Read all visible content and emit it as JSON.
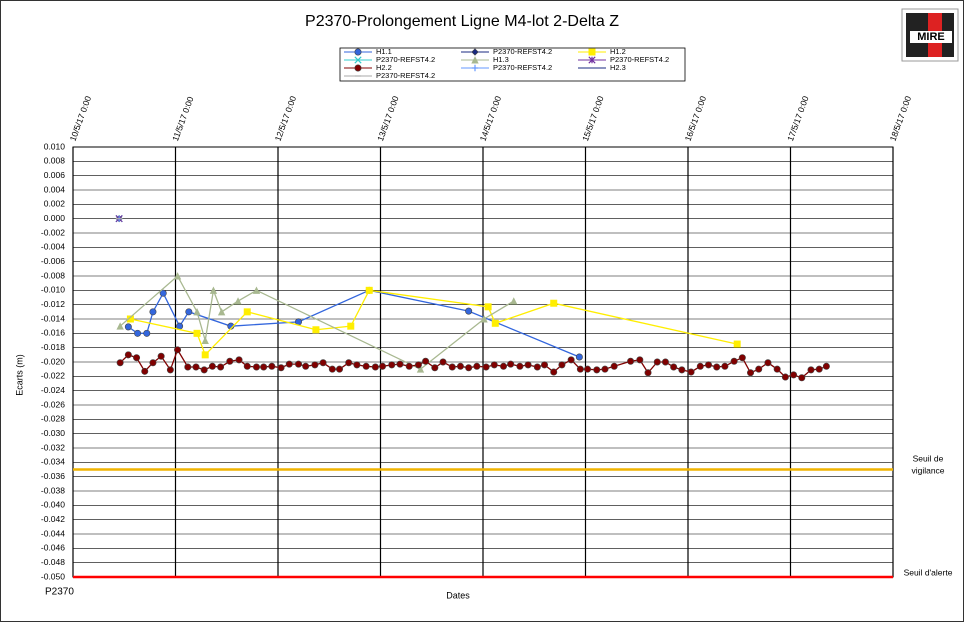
{
  "chart_data": {
    "type": "scatter-line",
    "title": "P2370-Prolongement Ligne M4-lot 2-Delta Z",
    "y_label": "Ecarts (m)",
    "x_label": "Dates",
    "footer": "P2370",
    "logo": "MIRE",
    "xlim": [
      10,
      18
    ],
    "xticks": [
      {
        "value": 10,
        "label": "10/5/17 0:00"
      },
      {
        "value": 11,
        "label": "11/5/17 0:00"
      },
      {
        "value": 12,
        "label": "12/5/17 0:00"
      },
      {
        "value": 13,
        "label": "13/5/17 0:00"
      },
      {
        "value": 14,
        "label": "14/5/17 0:00"
      },
      {
        "value": 15,
        "label": "15/5/17 0:00"
      },
      {
        "value": 16,
        "label": "16/5/17 0:00"
      },
      {
        "value": 17,
        "label": "17/5/17 0:00"
      },
      {
        "value": 18,
        "label": "18/5/17 0:00"
      }
    ],
    "ylim": [
      -0.05,
      0.01
    ],
    "yticks": [
      {
        "value": 0.01,
        "label": "0.010"
      },
      {
        "value": 0.008,
        "label": "0.008"
      },
      {
        "value": 0.006,
        "label": "0.006"
      },
      {
        "value": 0.004,
        "label": "0.004"
      },
      {
        "value": 0.002,
        "label": "0.002"
      },
      {
        "value": 0,
        "label": "0.000"
      },
      {
        "value": -0.002,
        "label": "-0.002"
      },
      {
        "value": -0.004,
        "label": "-0.004"
      },
      {
        "value": -0.006,
        "label": "-0.006"
      },
      {
        "value": -0.008,
        "label": "-0.008"
      },
      {
        "value": -0.01,
        "label": "-0.010"
      },
      {
        "value": -0.012,
        "label": "-0.012"
      },
      {
        "value": -0.014,
        "label": "-0.014"
      },
      {
        "value": -0.016,
        "label": "-0.016"
      },
      {
        "value": -0.018,
        "label": "-0.018"
      },
      {
        "value": -0.02,
        "label": "-0.020"
      },
      {
        "value": -0.022,
        "label": "-0.022"
      },
      {
        "value": -0.024,
        "label": "-0.024"
      },
      {
        "value": -0.026,
        "label": "-0.026"
      },
      {
        "value": -0.028,
        "label": "-0.028"
      },
      {
        "value": -0.03,
        "label": "-0.030"
      },
      {
        "value": -0.032,
        "label": "-0.032"
      },
      {
        "value": -0.034,
        "label": "-0.034"
      },
      {
        "value": -0.036,
        "label": "-0.036"
      },
      {
        "value": -0.038,
        "label": "-0.038"
      },
      {
        "value": -0.04,
        "label": "-0.040"
      },
      {
        "value": -0.042,
        "label": "-0.042"
      },
      {
        "value": -0.044,
        "label": "-0.044"
      },
      {
        "value": -0.046,
        "label": "-0.046"
      },
      {
        "value": -0.048,
        "label": "-0.048"
      },
      {
        "value": -0.05,
        "label": "-0.050"
      }
    ],
    "grid": true,
    "thresholds": [
      {
        "name": "Seuil de vigilance",
        "value": -0.035,
        "color": "#f0b400"
      },
      {
        "name": "Seuil d'alerte",
        "value": -0.05,
        "color": "#ff0000"
      }
    ],
    "series": [
      {
        "name": "H1.1",
        "color": "#3366dd",
        "marker": "circle",
        "x": [
          10.54,
          10.63,
          10.72,
          10.78,
          10.88,
          11.04,
          11.13,
          11.54,
          12.2,
          12.89,
          13.86,
          14.94
        ],
        "values": [
          -0.0151,
          -0.016,
          -0.016,
          -0.013,
          -0.0104,
          -0.015,
          -0.013,
          -0.015,
          -0.0144,
          -0.01,
          -0.0129,
          -0.0193
        ]
      },
      {
        "name": "P2370-REFST4.2",
        "color": "#1a2a80",
        "marker": "diamond",
        "x": [
          10.45
        ],
        "values": [
          0
        ]
      },
      {
        "name": "H1.2",
        "color": "#ffee00",
        "marker": "square",
        "x": [
          10.56,
          11.21,
          11.29,
          11.7,
          12.37,
          12.71,
          12.89,
          14.05,
          14.12,
          14.69,
          16.48
        ],
        "values": [
          -0.014,
          -0.016,
          -0.019,
          -0.013,
          -0.0155,
          -0.015,
          -0.01,
          -0.0123,
          -0.0146,
          -0.0118,
          -0.0175
        ]
      },
      {
        "name": "P2370-REFST4.2",
        "color": "#33cccc",
        "marker": "x",
        "x": [
          10.45
        ],
        "values": [
          0
        ]
      },
      {
        "name": "H1.3",
        "color": "#a8b890",
        "marker": "triangle",
        "x": [
          10.46,
          11.02,
          11.21,
          11.29,
          11.37,
          11.45,
          11.61,
          11.79,
          13.39,
          14.01,
          14.3
        ],
        "values": [
          -0.015,
          -0.008,
          -0.013,
          -0.017,
          -0.01,
          -0.013,
          -0.0115,
          -0.01,
          -0.021,
          -0.014,
          -0.0115
        ]
      },
      {
        "name": "P2370-REFST4.2",
        "color": "#7030a0",
        "marker": "star",
        "x": [
          10.45
        ],
        "values": [
          0
        ]
      },
      {
        "name": "H2.2",
        "color": "#800000",
        "marker": "circle",
        "x": [
          10.46,
          10.54,
          10.62,
          10.7,
          10.78,
          10.86,
          10.95,
          11.02,
          11.12,
          11.2,
          11.28,
          11.36,
          11.44,
          11.53,
          11.62,
          11.7,
          11.79,
          11.86,
          11.94,
          12.03,
          12.11,
          12.2,
          12.27,
          12.36,
          12.44,
          12.53,
          12.6,
          12.69,
          12.77,
          12.86,
          12.95,
          13.02,
          13.11,
          13.19,
          13.28,
          13.37,
          13.44,
          13.53,
          13.61,
          13.7,
          13.78,
          13.86,
          13.94,
          14.03,
          14.11,
          14.2,
          14.27,
          14.36,
          14.44,
          14.53,
          14.6,
          14.69,
          14.77,
          14.86,
          14.95,
          15.02,
          15.11,
          15.19,
          15.28,
          15.44,
          15.53,
          15.61,
          15.7,
          15.78,
          15.86,
          15.94,
          16.03,
          16.12,
          16.2,
          16.28,
          16.36,
          16.45,
          16.53,
          16.61,
          16.69,
          16.78,
          16.87,
          16.95,
          17.03,
          17.11,
          17.2,
          17.28,
          17.35
        ],
        "values": [
          -0.0201,
          -0.019,
          -0.0194,
          -0.0213,
          -0.0201,
          -0.0192,
          -0.0211,
          -0.0183,
          -0.0207,
          -0.0207,
          -0.0211,
          -0.0206,
          -0.0207,
          -0.0199,
          -0.0197,
          -0.0206,
          -0.0207,
          -0.0207,
          -0.0206,
          -0.0208,
          -0.0203,
          -0.0203,
          -0.0206,
          -0.0204,
          -0.0201,
          -0.021,
          -0.021,
          -0.0201,
          -0.0204,
          -0.0206,
          -0.0207,
          -0.0206,
          -0.0204,
          -0.0203,
          -0.0206,
          -0.0204,
          -0.0199,
          -0.0208,
          -0.02,
          -0.0207,
          -0.0206,
          -0.0208,
          -0.0206,
          -0.0207,
          -0.0204,
          -0.0206,
          -0.0203,
          -0.0206,
          -0.0204,
          -0.0207,
          -0.0204,
          -0.0214,
          -0.0204,
          -0.0197,
          -0.021,
          -0.021,
          -0.0211,
          -0.021,
          -0.0206,
          -0.0199,
          -0.0197,
          -0.0215,
          -0.02,
          -0.02,
          -0.0207,
          -0.0211,
          -0.0214,
          -0.0206,
          -0.0204,
          -0.0207,
          -0.0206,
          -0.0199,
          -0.0194,
          -0.0215,
          -0.021,
          -0.0201,
          -0.021,
          -0.0221,
          -0.0218,
          -0.0222,
          -0.0211,
          -0.021,
          -0.0206
        ]
      },
      {
        "name": "P2370-REFST4.2",
        "color": "#6699ff",
        "marker": "plus",
        "x": [
          10.45
        ],
        "values": [
          0
        ]
      },
      {
        "name": "H2.3",
        "color": "#1a2a80",
        "marker": "none",
        "x": [],
        "values": []
      },
      {
        "name": "P2370-REFST4.2",
        "color": "#aaaaaa",
        "marker": "dash",
        "x": [
          10.45
        ],
        "values": [
          0
        ]
      }
    ]
  }
}
